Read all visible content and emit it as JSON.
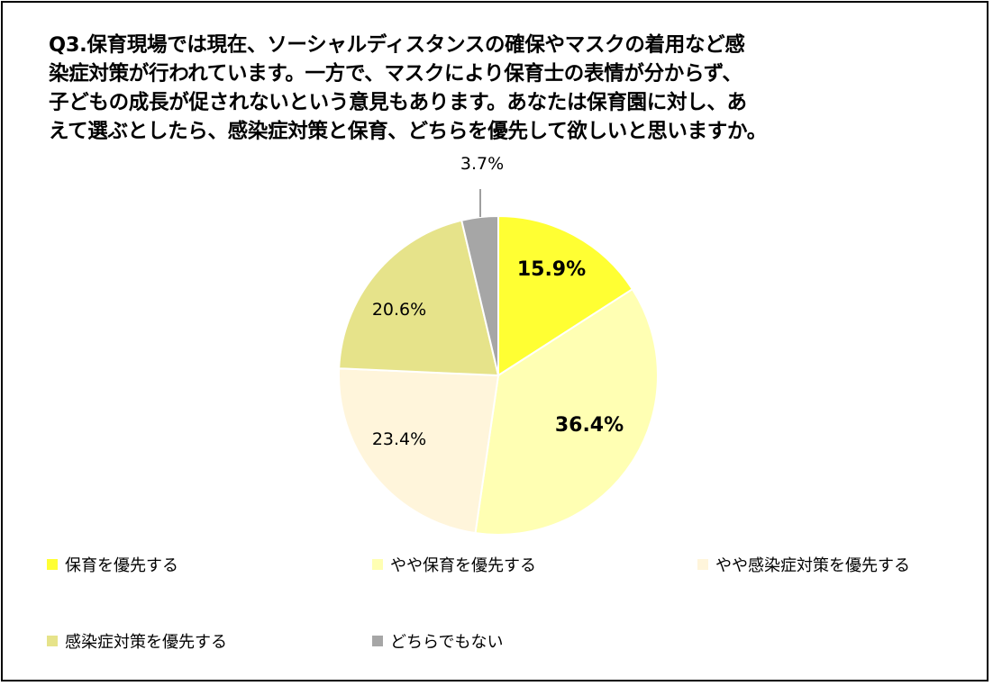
{
  "chart_data": {
    "type": "pie",
    "title": "Q3.保育現場では現在、ソーシャルディスタンスの確保やマスクの着用など感染症対策が行われています。一方で、マスクにより保育士の表情が分からず、子どもの成長が促されないという意見もあります。あなたは保育園に対し、あえて選ぶとしたら、感染症対策と保育、どちらを優先して欲しいと思いますか。",
    "title_lines": [
      "Q3.保育現場では現在、ソーシャルディスタンスの確保やマスクの着用など感",
      "染症対策が行われています。一方で、マスクにより保育士の表情が分からず、",
      "子どもの成長が促されないという意見もあります。あなたは保育園に対し、あ",
      "えて選ぶとしたら、感染症対策と保育、どちらを優先して欲しいと思いますか。"
    ],
    "slices": [
      {
        "name": "保育を優先する",
        "value": 15.9,
        "label": "15.9%",
        "color": "#ffff33",
        "bold": true
      },
      {
        "name": "やや保育を優先する",
        "value": 36.4,
        "label": "36.4%",
        "color": "#ffffb3",
        "bold": true
      },
      {
        "name": "やや感染症対策を優先する",
        "value": 23.4,
        "label": "23.4%",
        "color": "#fff5db",
        "bold": false
      },
      {
        "name": "感染症対策を優先する",
        "value": 20.6,
        "label": "20.6%",
        "color": "#e6e38a",
        "bold": false
      },
      {
        "name": "どちらでもない",
        "value": 3.7,
        "label": "3.7%",
        "color": "#a6a6a6",
        "bold": false
      }
    ],
    "legend_position": "bottom"
  }
}
